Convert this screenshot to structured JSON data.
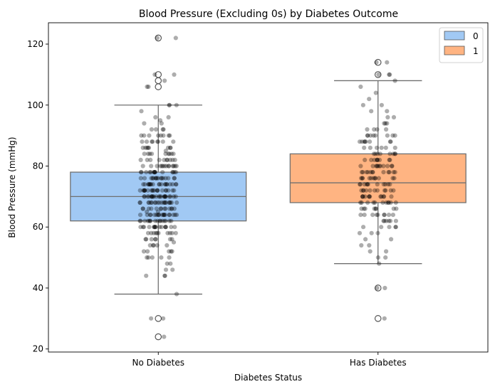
{
  "chart_data": {
    "type": "box",
    "title": "Blood Pressure (Excluding 0s) by Diabetes Outcome",
    "xlabel": "Diabetes Status",
    "ylabel": "Blood Pressure (mmHg)",
    "categories": [
      "No Diabetes",
      "Has Diabetes"
    ],
    "ylim": [
      19,
      127
    ],
    "yticks": [
      20,
      40,
      60,
      80,
      100,
      120
    ],
    "grid": false,
    "legend": {
      "placement": "top-right",
      "entries": [
        {
          "label": "0",
          "color": "#a1c9f4"
        },
        {
          "label": "1",
          "color": "#ffb482"
        }
      ]
    },
    "series": [
      {
        "category": "No Diabetes",
        "color": "#a1c9f4",
        "q1": 62,
        "median": 70,
        "q3": 78,
        "whisker_low": 38,
        "whisker_high": 100,
        "outliers": [
          24,
          30,
          106,
          108,
          110,
          122
        ]
      },
      {
        "category": "Has Diabetes",
        "color": "#ffb482",
        "q1": 68,
        "median": 74.5,
        "q3": 84,
        "whisker_low": 48,
        "whisker_high": 108,
        "outliers": [
          30,
          40,
          110,
          114
        ]
      }
    ],
    "strip_points": [
      {
        "category": "No Diabetes",
        "values": [
          24,
          30,
          30,
          38,
          44,
          44,
          44,
          46,
          46,
          48,
          48,
          50,
          50,
          50,
          50,
          50,
          52,
          52,
          52,
          52,
          52,
          54,
          54,
          54,
          54,
          54,
          55,
          56,
          56,
          56,
          56,
          56,
          56,
          56,
          58,
          58,
          58,
          58,
          58,
          58,
          58,
          58,
          58,
          58,
          60,
          60,
          60,
          60,
          60,
          60,
          60,
          60,
          60,
          60,
          60,
          60,
          60,
          60,
          60,
          60,
          62,
          62,
          62,
          62,
          62,
          62,
          62,
          62,
          62,
          62,
          62,
          62,
          62,
          62,
          62,
          62,
          64,
          64,
          64,
          64,
          64,
          64,
          64,
          64,
          64,
          64,
          64,
          64,
          64,
          64,
          64,
          64,
          64,
          64,
          64,
          65,
          65,
          66,
          66,
          66,
          66,
          66,
          66,
          66,
          66,
          66,
          66,
          66,
          66,
          66,
          68,
          68,
          68,
          68,
          68,
          68,
          68,
          68,
          68,
          68,
          68,
          68,
          68,
          68,
          68,
          68,
          68,
          68,
          68,
          68,
          70,
          70,
          70,
          70,
          70,
          70,
          70,
          70,
          70,
          70,
          70,
          70,
          70,
          70,
          70,
          70,
          70,
          70,
          70,
          70,
          70,
          70,
          72,
          72,
          72,
          72,
          72,
          72,
          72,
          72,
          72,
          72,
          72,
          72,
          72,
          72,
          72,
          72,
          72,
          72,
          72,
          72,
          74,
          74,
          74,
          74,
          74,
          74,
          74,
          74,
          74,
          74,
          74,
          74,
          74,
          74,
          74,
          74,
          74,
          74,
          74,
          74,
          76,
          76,
          76,
          76,
          76,
          76,
          76,
          76,
          76,
          76,
          76,
          76,
          76,
          76,
          76,
          76,
          78,
          78,
          78,
          78,
          78,
          78,
          78,
          78,
          78,
          78,
          78,
          78,
          78,
          78,
          78,
          80,
          80,
          80,
          80,
          80,
          80,
          80,
          80,
          80,
          80,
          80,
          80,
          80,
          80,
          82,
          82,
          82,
          82,
          82,
          82,
          82,
          82,
          82,
          82,
          84,
          84,
          84,
          84,
          84,
          84,
          84,
          84,
          84,
          85,
          86,
          86,
          86,
          86,
          86,
          86,
          86,
          86,
          88,
          88,
          88,
          88,
          88,
          88,
          88,
          88,
          90,
          90,
          90,
          90,
          90,
          90,
          90,
          90,
          92,
          92,
          92,
          92,
          94,
          94,
          95,
          96,
          96,
          98,
          100,
          100,
          100,
          106,
          106,
          108,
          110,
          110,
          122,
          122
        ]
      },
      {
        "category": "Has Diabetes",
        "values": [
          30,
          40,
          40,
          48,
          50,
          50,
          52,
          52,
          54,
          54,
          56,
          56,
          58,
          58,
          58,
          60,
          60,
          60,
          60,
          60,
          62,
          62,
          62,
          62,
          62,
          62,
          64,
          64,
          64,
          64,
          64,
          64,
          64,
          64,
          64,
          66,
          66,
          66,
          66,
          66,
          66,
          66,
          66,
          68,
          68,
          68,
          68,
          68,
          68,
          68,
          68,
          68,
          68,
          68,
          70,
          70,
          70,
          70,
          70,
          70,
          70,
          70,
          70,
          70,
          70,
          70,
          72,
          72,
          72,
          72,
          72,
          72,
          72,
          72,
          72,
          72,
          72,
          74,
          74,
          74,
          74,
          74,
          74,
          74,
          74,
          74,
          74,
          74,
          76,
          76,
          76,
          76,
          76,
          76,
          76,
          76,
          76,
          76,
          76,
          78,
          78,
          78,
          78,
          78,
          78,
          78,
          78,
          78,
          78,
          78,
          78,
          80,
          80,
          80,
          80,
          80,
          80,
          80,
          80,
          80,
          80,
          80,
          82,
          82,
          82,
          82,
          82,
          82,
          82,
          82,
          82,
          84,
          84,
          84,
          84,
          84,
          84,
          84,
          84,
          86,
          86,
          86,
          86,
          86,
          86,
          88,
          88,
          88,
          88,
          88,
          88,
          88,
          88,
          90,
          90,
          90,
          90,
          90,
          90,
          90,
          90,
          92,
          92,
          92,
          92,
          94,
          94,
          94,
          96,
          96,
          98,
          98,
          100,
          100,
          102,
          104,
          106,
          108,
          110,
          110,
          110,
          114,
          114
        ]
      }
    ]
  }
}
